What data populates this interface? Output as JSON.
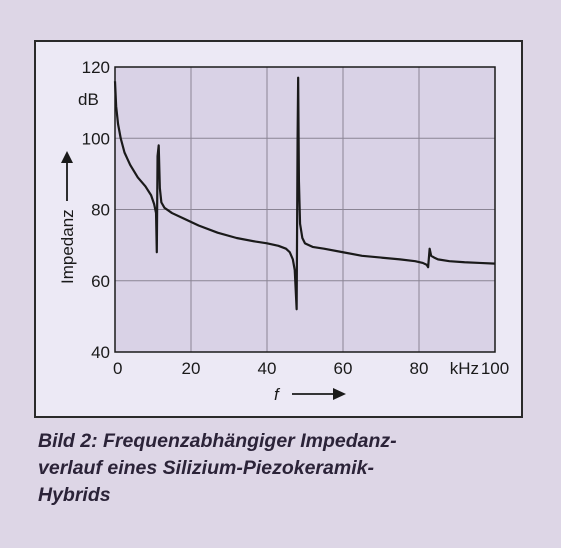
{
  "chart_data": {
    "type": "line",
    "xlabel": "f",
    "ylabel": "Impedanz",
    "x_unit": "kHz",
    "y_unit": "dB",
    "xlim": [
      0,
      100
    ],
    "ylim": [
      40,
      120
    ],
    "x_ticks": [
      "0",
      "20",
      "40",
      "60",
      "80",
      "100"
    ],
    "y_ticks": [
      "40",
      "60",
      "80",
      "100",
      "120"
    ],
    "grid": true,
    "series": [
      {
        "x": [
          0,
          0.3,
          0.8,
          1.5,
          2.5,
          4,
          6,
          8,
          9.5,
          10.3,
          10.8,
          11,
          11.2,
          11.5,
          11.8,
          12.2,
          13,
          15,
          18,
          22,
          27,
          32,
          37,
          40,
          43,
          45,
          46,
          46.8,
          47.3,
          47.8,
          48.05,
          48.2,
          48.4,
          48.7,
          49.3,
          50,
          52,
          55,
          60,
          65,
          70,
          75,
          79,
          81,
          82,
          82.4,
          82.8,
          83.2,
          84,
          85,
          88,
          92,
          96,
          100
        ],
        "y": [
          116,
          109,
          104,
          100,
          96,
          92.5,
          89,
          86.5,
          84,
          81.5,
          79,
          68,
          95,
          98,
          86,
          82,
          80.5,
          79,
          77.5,
          75.5,
          73.5,
          72,
          71,
          70.5,
          69.8,
          69,
          68,
          66,
          63,
          52,
          100,
          117,
          88,
          76,
          72,
          70.5,
          69.5,
          69,
          68,
          67,
          66.5,
          66,
          65.5,
          65,
          64.5,
          63.8,
          69,
          67,
          66.5,
          66,
          65.5,
          65.2,
          65,
          64.8
        ]
      }
    ],
    "line_color": "#1a1a1a",
    "plot_background": "#d9d2e6",
    "grid_color": "#8a8494"
  },
  "caption": {
    "line1": "Bild 2: Frequenzabhängiger Impedanz-",
    "line2": "verlauf eines Silizium-Piezokeramik-",
    "line3": "Hybrids"
  }
}
